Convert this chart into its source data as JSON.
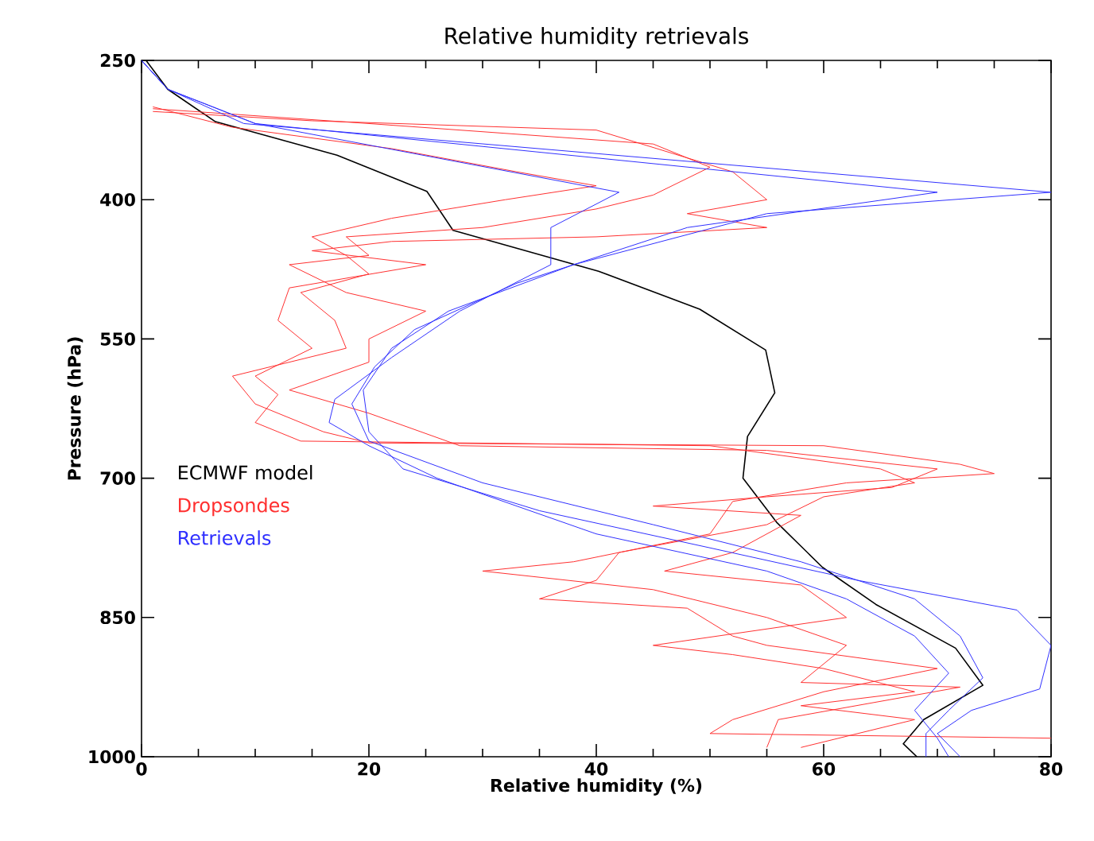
{
  "chart_data": {
    "type": "line",
    "title": "Relative humidity retrievals",
    "xlabel": "Relative humidity (%)",
    "ylabel": "Pressure (hPa)",
    "xlim": [
      0,
      80
    ],
    "xticks": [
      0,
      20,
      40,
      60,
      80
    ],
    "ylim": [
      1000,
      250
    ],
    "yticks": [
      250,
      400,
      550,
      700,
      850,
      1000
    ],
    "grid": false,
    "legend": "center left",
    "series": [
      {
        "name": "ECMWF model",
        "color": "#000000",
        "x": [
          0.4,
          2.3,
          6.5,
          17.2,
          25.1,
          27.4,
          40.2,
          49.1,
          54.9,
          55.7,
          53.3,
          52.9,
          55.9,
          59.9,
          64.6,
          71.6,
          74,
          68.8,
          67,
          68.2
        ],
        "values": [
          250,
          281,
          316,
          352,
          391,
          433,
          477,
          518,
          562,
          608,
          655,
          700,
          748,
          796,
          836,
          883,
          923,
          960,
          986,
          1000
        ]
      },
      {
        "name": "Dropsondes",
        "color": "#ff3030",
        "x": [
          1,
          15,
          40,
          52,
          55,
          48,
          55,
          40,
          22,
          15,
          25,
          13,
          12,
          15,
          10,
          12,
          10,
          14,
          50,
          65,
          68,
          60,
          55,
          42,
          40,
          35,
          48,
          52,
          55,
          70,
          60,
          52,
          50,
          80
        ],
        "values": [
          305,
          315,
          325,
          370,
          400,
          415,
          430,
          440,
          445,
          455,
          470,
          495,
          530,
          560,
          590,
          610,
          640,
          660,
          665,
          690,
          705,
          720,
          750,
          780,
          810,
          830,
          840,
          870,
          880,
          905,
          930,
          960,
          975,
          980
        ]
      },
      {
        "color": "#ff3030",
        "x": [
          1,
          8,
          22,
          33,
          40,
          32,
          22,
          15,
          18,
          20,
          14,
          17,
          18,
          8,
          10,
          16,
          20,
          60,
          72,
          75,
          62,
          52,
          50,
          38,
          30,
          45,
          55,
          62,
          58,
          72,
          56,
          55
        ],
        "values": [
          300,
          322,
          345,
          370,
          385,
          400,
          420,
          440,
          460,
          480,
          500,
          530,
          560,
          590,
          620,
          650,
          662,
          665,
          685,
          695,
          705,
          725,
          760,
          790,
          800,
          820,
          850,
          880,
          920,
          925,
          960,
          990
        ]
      },
      {
        "color": "#ff3030",
        "x": [
          1,
          20,
          45,
          50,
          45,
          40,
          30,
          18,
          20,
          13,
          18,
          25,
          20,
          20,
          13,
          20,
          28,
          55,
          70,
          66,
          55,
          45,
          58,
          52,
          46,
          58,
          62,
          45,
          52,
          60,
          68,
          58,
          68,
          58
        ],
        "values": [
          302,
          318,
          340,
          365,
          395,
          410,
          430,
          440,
          460,
          470,
          500,
          520,
          550,
          575,
          605,
          630,
          665,
          670,
          690,
          710,
          720,
          730,
          740,
          780,
          800,
          815,
          850,
          880,
          890,
          905,
          930,
          945,
          960,
          990
        ]
      },
      {
        "name": "Retrievals",
        "color": "#3030ff",
        "x": [
          0,
          2.3,
          9,
          80,
          55,
          38,
          27,
          22,
          19.5,
          20,
          23,
          35,
          50,
          63,
          77,
          80,
          79,
          73,
          70,
          72
        ],
        "values": [
          250,
          281,
          318,
          392,
          415,
          470,
          520,
          560,
          605,
          650,
          690,
          735,
          775,
          810,
          842,
          880,
          927,
          950,
          975,
          1000
        ]
      },
      {
        "color": "#3030ff",
        "x": [
          0,
          2.3,
          10,
          70,
          48,
          33,
          24,
          20.5,
          18.5,
          20,
          30,
          45,
          58,
          68,
          72,
          74,
          71,
          69,
          69
        ],
        "values": [
          250,
          281,
          318,
          392,
          430,
          490,
          540,
          580,
          620,
          660,
          705,
          750,
          790,
          830,
          870,
          915,
          950,
          975,
          1000
        ]
      },
      {
        "color": "#3030ff",
        "x": [
          0,
          2.3,
          10,
          42,
          36,
          36,
          28,
          22,
          17,
          16.5,
          20,
          26,
          40,
          55,
          62,
          68,
          71,
          68,
          70,
          71
        ],
        "values": [
          250,
          281,
          318,
          392,
          430,
          470,
          520,
          570,
          615,
          640,
          665,
          700,
          760,
          800,
          830,
          870,
          910,
          950,
          980,
          1000
        ]
      }
    ]
  }
}
